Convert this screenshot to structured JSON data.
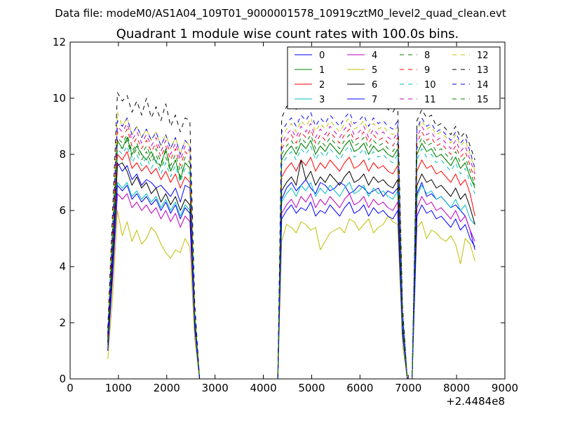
{
  "suptitle": "Data file: modeM0/AS1A04_109T01_9000001578_10919cztM0_level2_quad_clean.evt",
  "chart_data": {
    "type": "line",
    "title": "Quadrant 1 module wise count rates with 100.0s bins.",
    "xlabel": "",
    "ylabel": "",
    "x_offset_label": "+2.4484e8",
    "xlim": [
      0,
      9000
    ],
    "ylim": [
      0,
      12
    ],
    "xticks": [
      0,
      1000,
      2000,
      3000,
      4000,
      5000,
      6000,
      7000,
      8000,
      9000
    ],
    "yticks": [
      0,
      2,
      4,
      6,
      8,
      10,
      12
    ],
    "x": [
      780,
      880,
      980,
      1080,
      1180,
      1280,
      1380,
      1480,
      1580,
      1680,
      1780,
      1880,
      1980,
      2080,
      2180,
      2280,
      2380,
      2480,
      2580,
      2680,
      2780,
      4200,
      4300,
      4380,
      4480,
      4580,
      4680,
      4780,
      4880,
      4980,
      5080,
      5180,
      5280,
      5380,
      5480,
      5580,
      5680,
      5780,
      5880,
      5980,
      6080,
      6180,
      6280,
      6380,
      6480,
      6580,
      6680,
      6780,
      6880,
      6980,
      7080,
      7180,
      7280,
      7380,
      7480,
      7580,
      7680,
      7780,
      7880,
      7980,
      8080,
      8180,
      8280,
      8380
    ],
    "series": [
      {
        "name": "0",
        "color": "#0000ff",
        "dash": "solid",
        "values": [
          1.2,
          4.2,
          7.7,
          7.4,
          7.6,
          7.1,
          7.3,
          6.9,
          7.1,
          7.0,
          6.8,
          6.9,
          6.7,
          6.5,
          6.8,
          6.3,
          6.9,
          6.8,
          2.0,
          0.0,
          0.0,
          0.0,
          0.0,
          6.4,
          6.8,
          7.0,
          6.7,
          6.9,
          7.1,
          6.8,
          6.6,
          7.0,
          6.9,
          6.7,
          6.8,
          7.0,
          6.9,
          6.6,
          6.7,
          6.9,
          6.8,
          6.6,
          6.7,
          6.8,
          6.5,
          6.7,
          6.6,
          6.8,
          1.8,
          0.0,
          0.0,
          6.6,
          7.0,
          6.5,
          6.6,
          6.4,
          6.5,
          6.3,
          6.1,
          6.2,
          6.0,
          5.8,
          5.3,
          4.6
        ]
      },
      {
        "name": "1",
        "color": "#008000",
        "dash": "solid",
        "values": [
          1.4,
          4.8,
          8.5,
          8.2,
          8.6,
          8.0,
          8.3,
          8.0,
          7.8,
          8.1,
          7.7,
          7.6,
          8.2,
          7.4,
          7.8,
          7.1,
          7.7,
          7.5,
          2.2,
          0.0,
          0.0,
          0.0,
          0.0,
          7.8,
          8.1,
          8.3,
          8.0,
          8.4,
          8.2,
          8.5,
          8.0,
          8.3,
          8.1,
          8.4,
          8.2,
          8.0,
          8.3,
          8.5,
          8.1,
          8.2,
          8.4,
          8.0,
          8.3,
          8.1,
          8.2,
          8.0,
          7.9,
          8.2,
          2.1,
          0.0,
          0.0,
          8.0,
          8.4,
          8.1,
          8.2,
          7.9,
          8.0,
          7.8,
          7.6,
          7.9,
          7.5,
          7.7,
          7.2,
          6.8
        ]
      },
      {
        "name": "2",
        "color": "#ff0000",
        "dash": "solid",
        "values": [
          1.3,
          4.5,
          8.0,
          7.8,
          8.1,
          7.5,
          7.7,
          7.4,
          7.6,
          7.3,
          7.5,
          7.1,
          7.4,
          7.0,
          7.3,
          6.8,
          7.2,
          7.0,
          2.1,
          0.0,
          0.0,
          0.0,
          0.0,
          7.2,
          7.5,
          7.7,
          7.4,
          7.8,
          7.6,
          7.9,
          7.4,
          7.7,
          7.5,
          7.8,
          7.6,
          7.4,
          7.7,
          7.9,
          7.5,
          7.6,
          7.8,
          7.4,
          7.7,
          7.5,
          7.6,
          7.4,
          7.3,
          7.6,
          1.9,
          0.0,
          0.0,
          7.4,
          7.8,
          7.5,
          7.6,
          7.3,
          7.4,
          7.2,
          7.0,
          7.3,
          6.9,
          7.1,
          6.6,
          5.8
        ]
      },
      {
        "name": "3",
        "color": "#00bfbf",
        "dash": "solid",
        "values": [
          1.1,
          3.9,
          7.0,
          6.8,
          7.0,
          6.5,
          6.7,
          6.4,
          6.6,
          6.3,
          6.5,
          6.1,
          6.4,
          6.0,
          6.3,
          5.8,
          6.2,
          6.0,
          1.9,
          0.0,
          0.0,
          0.0,
          0.0,
          6.3,
          6.6,
          6.8,
          6.5,
          6.9,
          6.7,
          7.0,
          6.5,
          6.8,
          6.6,
          6.9,
          6.7,
          6.5,
          6.8,
          7.0,
          6.6,
          6.7,
          6.9,
          6.5,
          6.8,
          6.6,
          6.7,
          6.5,
          6.4,
          6.7,
          1.7,
          0.0,
          0.0,
          6.5,
          6.9,
          6.6,
          6.7,
          6.4,
          6.5,
          6.3,
          6.1,
          6.4,
          6.0,
          6.2,
          5.7,
          5.5
        ]
      },
      {
        "name": "4",
        "color": "#bf00bf",
        "dash": "solid",
        "values": [
          1.0,
          3.6,
          6.6,
          6.4,
          6.6,
          6.1,
          6.3,
          6.0,
          6.2,
          5.9,
          6.1,
          5.7,
          6.0,
          5.6,
          5.9,
          5.4,
          5.8,
          5.6,
          1.8,
          0.0,
          0.0,
          0.0,
          0.0,
          5.9,
          6.2,
          6.4,
          6.1,
          6.5,
          6.3,
          6.6,
          6.1,
          6.4,
          6.2,
          6.5,
          6.3,
          6.1,
          6.4,
          6.6,
          6.2,
          6.3,
          6.5,
          6.1,
          6.4,
          6.2,
          6.3,
          6.1,
          6.0,
          6.3,
          1.6,
          0.0,
          0.0,
          6.1,
          6.5,
          6.2,
          6.3,
          6.0,
          6.1,
          5.9,
          5.7,
          6.0,
          5.6,
          5.8,
          5.3,
          4.9
        ]
      },
      {
        "name": "5",
        "color": "#bfbf00",
        "dash": "solid",
        "values": [
          0.7,
          2.9,
          6.0,
          5.1,
          5.6,
          4.9,
          5.3,
          4.8,
          5.0,
          5.4,
          5.2,
          4.8,
          4.5,
          4.3,
          4.6,
          4.5,
          5.0,
          4.7,
          1.4,
          0.0,
          0.0,
          0.0,
          0.0,
          4.9,
          5.5,
          5.4,
          5.2,
          5.6,
          5.5,
          5.3,
          5.4,
          4.6,
          4.9,
          5.2,
          5.3,
          5.4,
          5.2,
          5.7,
          5.6,
          5.3,
          5.5,
          5.7,
          5.2,
          5.4,
          5.5,
          5.8,
          5.6,
          5.5,
          1.2,
          0.0,
          0.0,
          5.4,
          5.6,
          5.0,
          5.3,
          5.2,
          5.0,
          4.9,
          5.1,
          4.8,
          4.1,
          5.0,
          4.8,
          4.2
        ]
      },
      {
        "name": "6",
        "color": "#000000",
        "dash": "solid",
        "values": [
          1.3,
          4.4,
          7.6,
          7.7,
          7.4,
          6.9,
          7.2,
          6.8,
          7.0,
          6.6,
          6.8,
          6.3,
          6.6,
          6.2,
          6.5,
          6.0,
          6.4,
          6.2,
          2.0,
          0.0,
          0.0,
          0.0,
          0.0,
          6.7,
          7.0,
          7.2,
          6.9,
          7.8,
          7.1,
          7.4,
          6.9,
          7.2,
          7.0,
          7.3,
          7.1,
          6.9,
          7.2,
          7.4,
          7.0,
          7.1,
          7.3,
          6.9,
          7.2,
          7.0,
          7.1,
          6.9,
          6.8,
          7.1,
          1.9,
          0.0,
          0.0,
          6.9,
          7.3,
          7.0,
          7.1,
          6.8,
          6.9,
          6.7,
          6.5,
          6.8,
          6.4,
          6.6,
          6.1,
          5.5
        ]
      },
      {
        "name": "7",
        "color": "#0000ff",
        "dash": "solid",
        "values": [
          1.0,
          3.8,
          6.9,
          6.7,
          6.9,
          6.4,
          6.6,
          6.3,
          6.5,
          6.2,
          6.4,
          6.0,
          6.3,
          5.9,
          6.2,
          5.7,
          6.1,
          5.9,
          1.8,
          0.0,
          0.0,
          0.0,
          0.0,
          5.7,
          6.0,
          6.2,
          5.9,
          6.1,
          6.0,
          6.3,
          5.8,
          6.0,
          5.9,
          6.2,
          6.0,
          5.8,
          6.1,
          6.3,
          5.9,
          6.0,
          6.2,
          5.8,
          6.1,
          5.9,
          6.0,
          5.8,
          5.7,
          6.0,
          1.6,
          0.0,
          0.0,
          5.8,
          6.2,
          5.9,
          6.0,
          5.7,
          5.8,
          5.6,
          5.4,
          5.7,
          5.3,
          5.5,
          5.0,
          4.7
        ]
      },
      {
        "name": "8",
        "color": "#008000",
        "dash": "dashed",
        "values": [
          1.5,
          5.0,
          8.6,
          8.4,
          8.7,
          8.1,
          8.4,
          8.0,
          8.3,
          7.9,
          8.2,
          7.7,
          8.1,
          7.6,
          8.0,
          7.4,
          7.9,
          7.7,
          2.3,
          0.0,
          0.0,
          0.0,
          0.0,
          8.0,
          8.3,
          8.5,
          8.2,
          8.6,
          8.4,
          8.7,
          8.2,
          8.5,
          8.3,
          8.6,
          8.4,
          8.2,
          8.5,
          8.7,
          8.3,
          8.4,
          8.6,
          8.2,
          8.5,
          8.3,
          8.4,
          8.2,
          8.1,
          8.4,
          2.2,
          0.0,
          0.0,
          8.2,
          8.6,
          8.3,
          8.4,
          8.1,
          8.2,
          8.0,
          7.8,
          8.1,
          7.7,
          7.9,
          7.4,
          6.9
        ]
      },
      {
        "name": "9",
        "color": "#ff0000",
        "dash": "dashed",
        "values": [
          1.5,
          5.1,
          8.8,
          8.6,
          8.9,
          8.3,
          8.6,
          8.2,
          8.5,
          8.1,
          8.4,
          7.9,
          8.3,
          7.8,
          8.2,
          7.6,
          8.1,
          7.9,
          2.3,
          0.0,
          0.0,
          0.0,
          0.0,
          8.2,
          8.5,
          8.7,
          8.4,
          8.8,
          8.6,
          8.9,
          8.4,
          8.7,
          8.5,
          8.8,
          8.6,
          8.4,
          8.7,
          8.9,
          8.5,
          8.6,
          8.8,
          8.4,
          8.7,
          8.5,
          8.6,
          8.4,
          8.3,
          8.6,
          2.2,
          0.0,
          0.0,
          8.4,
          8.8,
          8.5,
          8.6,
          8.3,
          8.4,
          8.2,
          8.0,
          8.3,
          7.9,
          8.1,
          7.6,
          7.1
        ]
      },
      {
        "name": "10",
        "color": "#00bfbf",
        "dash": "dashed",
        "values": [
          1.4,
          4.7,
          8.2,
          8.0,
          8.3,
          7.7,
          8.0,
          7.6,
          7.9,
          7.5,
          7.8,
          7.3,
          7.7,
          7.2,
          7.6,
          7.0,
          7.5,
          7.3,
          2.2,
          0.0,
          0.0,
          0.0,
          0.0,
          7.6,
          7.9,
          8.1,
          7.8,
          8.2,
          8.0,
          8.3,
          7.8,
          8.1,
          7.9,
          8.2,
          8.0,
          7.8,
          8.1,
          8.3,
          7.9,
          8.0,
          8.2,
          7.8,
          8.1,
          7.9,
          8.0,
          7.8,
          7.7,
          8.0,
          2.0,
          0.0,
          0.0,
          7.8,
          8.2,
          7.9,
          8.0,
          7.7,
          7.8,
          7.6,
          7.4,
          7.7,
          7.3,
          7.5,
          7.0,
          6.6
        ]
      },
      {
        "name": "11",
        "color": "#bf00bf",
        "dash": "dashed",
        "values": [
          1.6,
          5.3,
          9.0,
          8.8,
          9.1,
          8.5,
          8.8,
          8.4,
          8.7,
          8.3,
          8.6,
          8.1,
          8.5,
          8.0,
          8.4,
          7.8,
          8.3,
          8.1,
          2.4,
          0.0,
          0.0,
          0.0,
          0.0,
          8.4,
          8.7,
          8.9,
          8.6,
          9.0,
          8.8,
          9.1,
          8.6,
          8.9,
          8.7,
          9.0,
          8.8,
          8.6,
          8.9,
          9.1,
          8.7,
          8.8,
          9.0,
          8.6,
          8.9,
          8.7,
          8.8,
          8.6,
          8.5,
          8.8,
          2.3,
          0.0,
          0.0,
          8.6,
          9.0,
          8.7,
          8.8,
          8.5,
          8.6,
          8.4,
          8.2,
          8.5,
          8.1,
          8.3,
          7.8,
          7.3
        ]
      },
      {
        "name": "12",
        "color": "#bfbf00",
        "dash": "dashed",
        "values": [
          1.7,
          5.5,
          9.5,
          9.0,
          9.3,
          8.7,
          9.0,
          8.6,
          8.9,
          8.5,
          8.8,
          8.3,
          8.7,
          8.2,
          8.6,
          8.0,
          8.5,
          8.3,
          2.5,
          0.0,
          0.0,
          0.0,
          0.0,
          8.6,
          8.9,
          9.1,
          8.8,
          9.2,
          9.0,
          9.3,
          8.8,
          9.1,
          8.9,
          9.2,
          9.0,
          8.8,
          9.1,
          9.3,
          8.9,
          9.0,
          9.2,
          8.8,
          9.1,
          8.9,
          9.0,
          8.8,
          8.7,
          9.0,
          2.4,
          0.0,
          0.0,
          8.8,
          9.2,
          8.9,
          9.0,
          8.7,
          8.8,
          8.6,
          8.4,
          8.7,
          8.3,
          8.5,
          8.0,
          7.4
        ]
      },
      {
        "name": "13",
        "color": "#000000",
        "dash": "dashed",
        "values": [
          1.8,
          6.0,
          10.2,
          9.9,
          10.1,
          9.5,
          9.9,
          9.4,
          10.0,
          9.3,
          9.7,
          9.2,
          9.8,
          9.0,
          9.4,
          8.8,
          9.3,
          9.2,
          2.7,
          0.0,
          0.0,
          0.0,
          0.0,
          9.3,
          9.7,
          9.9,
          9.6,
          10.1,
          9.8,
          10.2,
          9.6,
          9.9,
          9.7,
          10.0,
          9.8,
          9.6,
          9.9,
          10.2,
          9.7,
          9.8,
          10.0,
          9.6,
          9.9,
          9.7,
          9.8,
          9.6,
          9.5,
          9.8,
          2.6,
          0.0,
          0.0,
          9.2,
          9.6,
          9.3,
          9.4,
          9.0,
          9.1,
          8.9,
          8.7,
          9.0,
          8.6,
          8.8,
          8.3,
          7.8
        ]
      },
      {
        "name": "14",
        "color": "#0000ff",
        "dash": "dashed",
        "values": [
          1.6,
          5.4,
          9.2,
          9.0,
          9.3,
          8.7,
          9.0,
          8.6,
          8.9,
          8.5,
          8.8,
          8.3,
          8.7,
          8.2,
          8.6,
          8.0,
          8.5,
          8.3,
          2.4,
          0.0,
          0.0,
          0.0,
          0.0,
          8.8,
          9.1,
          9.3,
          9.0,
          9.4,
          9.2,
          9.5,
          9.0,
          9.3,
          9.1,
          9.4,
          9.2,
          9.0,
          9.3,
          9.5,
          9.1,
          9.2,
          9.4,
          9.0,
          9.3,
          9.1,
          9.2,
          9.0,
          8.9,
          9.2,
          2.4,
          0.0,
          0.0,
          8.9,
          9.3,
          9.0,
          9.1,
          8.8,
          8.9,
          8.7,
          8.5,
          8.8,
          8.4,
          8.6,
          8.1,
          7.5
        ]
      },
      {
        "name": "15",
        "color": "#008000",
        "dash": "dashed",
        "values": [
          1.4,
          4.9,
          8.4,
          8.2,
          8.5,
          7.9,
          8.2,
          7.8,
          8.1,
          7.7,
          8.0,
          7.5,
          7.9,
          7.4,
          7.8,
          7.2,
          7.7,
          7.5,
          2.2,
          0.0,
          0.0,
          0.0,
          0.0,
          7.8,
          8.1,
          8.3,
          8.0,
          8.4,
          8.2,
          8.5,
          8.0,
          8.3,
          8.1,
          8.4,
          8.2,
          8.0,
          8.3,
          8.5,
          8.1,
          8.2,
          8.4,
          8.0,
          8.3,
          8.1,
          8.2,
          8.0,
          7.9,
          8.2,
          2.1,
          0.0,
          0.0,
          8.0,
          8.4,
          8.1,
          8.2,
          7.9,
          8.0,
          7.8,
          7.6,
          7.9,
          7.5,
          7.7,
          7.2,
          6.9
        ]
      }
    ],
    "legend_location": "top-right",
    "legend_columns": 4,
    "grid": false
  }
}
